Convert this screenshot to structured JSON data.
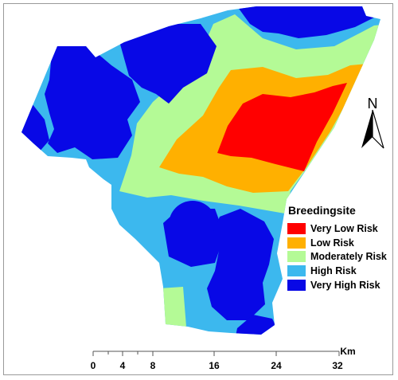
{
  "legend": {
    "title": "Breedingsite",
    "items": [
      {
        "label": "Very Low Risk",
        "color": "#ff0000"
      },
      {
        "label": "Low Risk",
        "color": "#ffb000"
      },
      {
        "label": "Moderately Risk",
        "color": "#b4fa96"
      },
      {
        "label": "High Risk",
        "color": "#3cb8ee"
      },
      {
        "label": "Very High Risk",
        "color": "#0808e6"
      }
    ]
  },
  "north_arrow": {
    "label": "N"
  },
  "scale_bar": {
    "unit": "Km",
    "ticks": [
      "0",
      "4",
      "8",
      "16",
      "24",
      "32"
    ]
  },
  "colors": {
    "very_low": "#ff0000",
    "low": "#ffb000",
    "moderate": "#b4fa96",
    "high": "#3cb8ee",
    "very_high": "#0808e6"
  }
}
